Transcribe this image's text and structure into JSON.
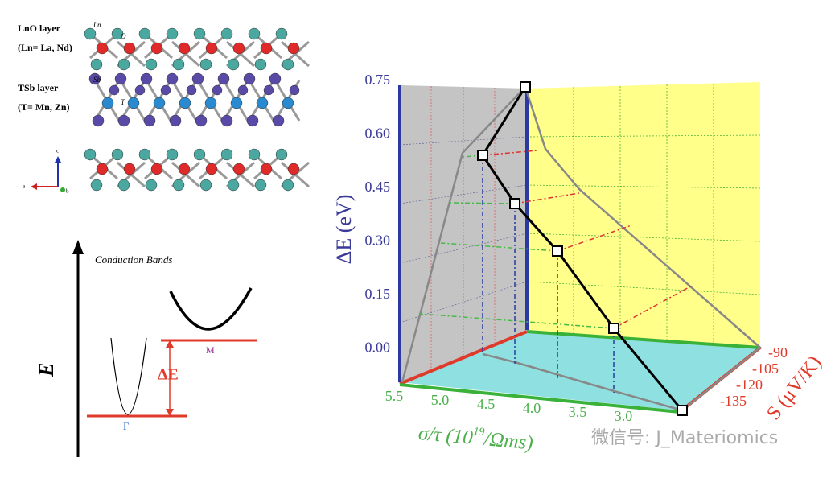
{
  "structure": {
    "lno_layer": "LnO layer",
    "lno_elements": "(Ln= La, Nd)",
    "tsb_layer": "TSb layer",
    "tsb_elements": "(T= Mn, Zn)",
    "atom_ln": "Ln",
    "atom_o": "O",
    "atom_sb": "Sb",
    "atom_t": "T",
    "axis_c": "c",
    "axis_a": "a",
    "axis_b": "b"
  },
  "bands": {
    "title": "Conduction Bands",
    "energy": "E",
    "delta": "ΔE",
    "gamma": "Γ",
    "m": "M"
  },
  "plot": {
    "y_label": "ΔE (eV)",
    "y_ticks": [
      "0.75",
      "0.60",
      "0.45",
      "0.30",
      "0.15",
      "0.00"
    ],
    "x_label": "σ/τ (10",
    "x_label_sup": "19",
    "x_label_end": "/Ωms)",
    "x_ticks": [
      "5.5",
      "5.0",
      "4.5",
      "4.0",
      "3.5",
      "3.0"
    ],
    "s_label": "S (μV/K)",
    "s_ticks": [
      "-90",
      "-105",
      "-120",
      "-135"
    ]
  },
  "watermark": "微信号: J_Materiomics"
}
